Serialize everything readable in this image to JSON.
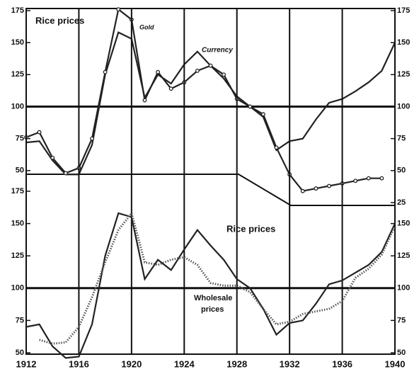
{
  "chart_data": [
    {
      "type": "line",
      "annotations": [
        "Rice prices",
        "Gold",
        "Currency"
      ],
      "x": [
        1912,
        1913,
        1914,
        1915,
        1916,
        1917,
        1918,
        1919,
        1920,
        1921,
        1922,
        1923,
        1924,
        1925,
        1926,
        1927,
        1928,
        1929,
        1930,
        1931,
        1932,
        1933,
        1934,
        1935,
        1936,
        1937,
        1938,
        1939,
        1940
      ],
      "series": [
        {
          "name": "Currency",
          "color": "#222222",
          "marker": "none",
          "values": [
            72,
            73,
            58,
            47,
            47,
            70,
            125,
            158,
            153,
            107,
            125,
            118,
            133,
            143,
            132,
            122,
            108,
            100,
            92,
            66,
            73,
            75,
            90,
            103,
            106,
            112,
            119,
            128,
            150
          ]
        },
        {
          "name": "Gold",
          "color": "#222222",
          "marker": "circle",
          "values": [
            76,
            80,
            60,
            48,
            52,
            75,
            127,
            176,
            168,
            105,
            127,
            114,
            119,
            128,
            132,
            125,
            106,
            100,
            94,
            68,
            47,
            34,
            36,
            38,
            40,
            42,
            44,
            44,
            null
          ]
        }
      ],
      "xlim": [
        1912,
        1940
      ],
      "ylim": [
        25,
        175
      ],
      "yticks": [
        50,
        75,
        100,
        125,
        150,
        175
      ],
      "y2lim": [
        25,
        175
      ],
      "y2ticks": [
        25,
        50,
        75,
        100,
        125,
        150,
        175
      ],
      "hline": 100
    },
    {
      "type": "line",
      "annotations": [
        "Rice prices",
        "Wholesale",
        "prices"
      ],
      "x": [
        1912,
        1913,
        1914,
        1915,
        1916,
        1917,
        1918,
        1919,
        1920,
        1921,
        1922,
        1923,
        1924,
        1925,
        1926,
        1927,
        1928,
        1929,
        1930,
        1931,
        1932,
        1933,
        1934,
        1935,
        1936,
        1937,
        1938,
        1939,
        1940
      ],
      "series": [
        {
          "name": "Rice prices",
          "color": "#222222",
          "dash": "solid",
          "values": [
            70,
            72,
            55,
            46,
            47,
            72,
            125,
            158,
            155,
            107,
            122,
            114,
            130,
            145,
            133,
            122,
            107,
            100,
            84,
            64,
            73,
            75,
            88,
            103,
            106,
            112,
            118,
            128,
            150
          ]
        },
        {
          "name": "Wholesale prices",
          "color": "#555555",
          "dash": "dotted",
          "values": [
            null,
            60,
            57,
            58,
            70,
            93,
            120,
            145,
            158,
            120,
            118,
            122,
            124,
            118,
            104,
            102,
            102,
            97,
            84,
            72,
            74,
            80,
            82,
            84,
            90,
            108,
            115,
            126,
            148
          ]
        }
      ],
      "xlim": [
        1912,
        1940
      ],
      "xticks": [
        1912,
        1916,
        1920,
        1924,
        1928,
        1932,
        1936,
        1940
      ],
      "ylim": [
        50,
        175
      ],
      "yticks": [
        50,
        75,
        100,
        125,
        150,
        175
      ],
      "y2lim": [
        50,
        175
      ],
      "y2ticks": [
        50,
        75,
        100,
        125,
        150
      ],
      "hline": 100
    }
  ]
}
